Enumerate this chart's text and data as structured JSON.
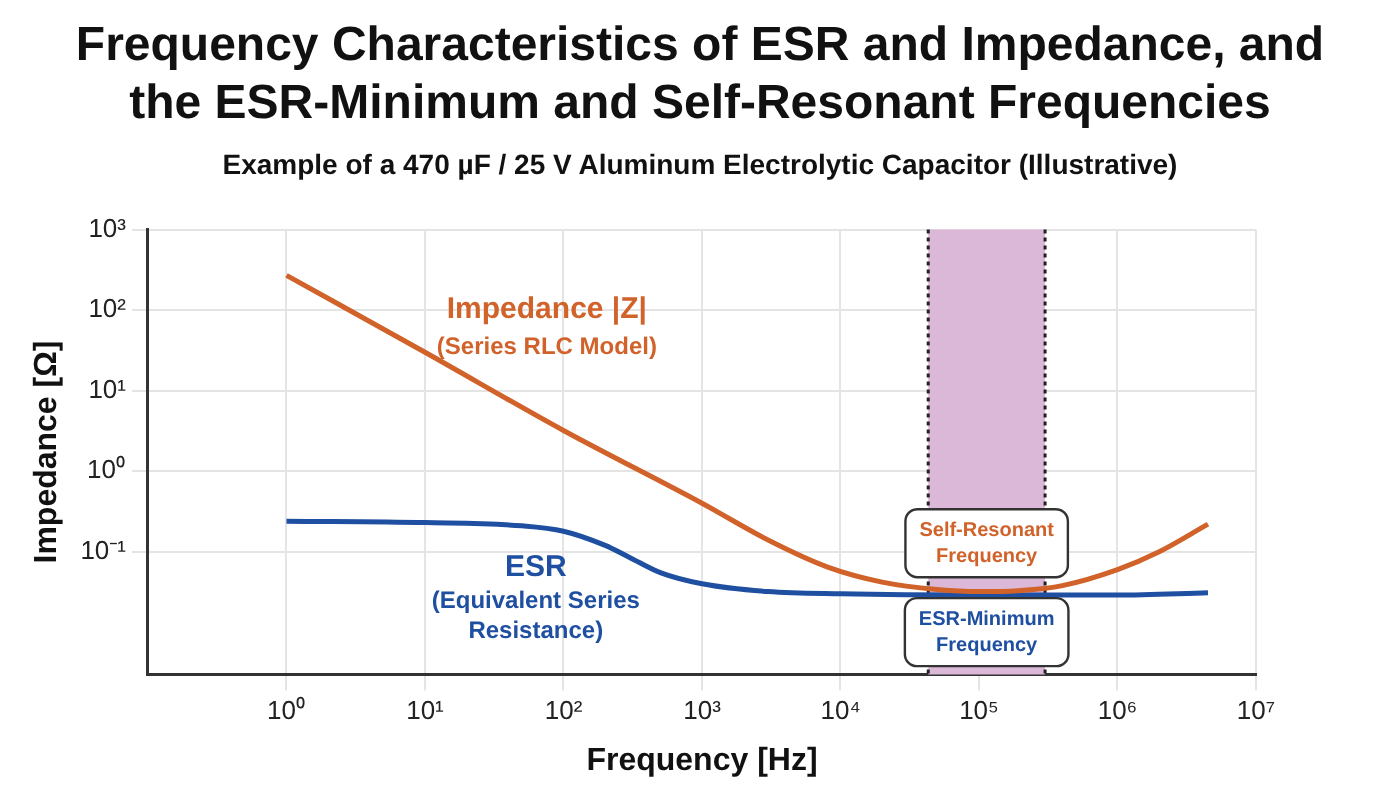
{
  "chart_data": {
    "type": "line",
    "title": "Frequency Characteristics of ESR and Impedance, and the ESR-Minimum and Self-Resonant Frequencies",
    "subtitle": "Example of a 470 µF / 25 V Aluminum Electrolytic Capacitor (Illustrative)",
    "xlabel": "Frequency [Hz]",
    "ylabel": "Impedance [Ω]",
    "log": "xy",
    "grid": true,
    "legend": false,
    "marker": "none",
    "line_style": "solid",
    "xlim": [
      0.1,
      10000000
    ],
    "xticks": [
      {
        "value": 1,
        "label": "10⁰"
      },
      {
        "value": 10,
        "label": "10¹"
      },
      {
        "value": 100,
        "label": "10²"
      },
      {
        "value": 1000,
        "label": "10³"
      },
      {
        "value": 10000,
        "label": "10⁴"
      },
      {
        "value": 100000,
        "label": "10⁵"
      },
      {
        "value": 1000000,
        "label": "10⁶"
      },
      {
        "value": 10000000,
        "label": "10⁷"
      }
    ],
    "ylim": [
      0.003,
      1000
    ],
    "yticks": [
      {
        "value": 0.1,
        "label": "10⁻¹"
      },
      {
        "value": 1,
        "label": "10⁰"
      },
      {
        "value": 10,
        "label": "10¹"
      },
      {
        "value": 100,
        "label": "10²"
      },
      {
        "value": 1000,
        "label": "10³"
      }
    ],
    "series": [
      {
        "name": "Impedance |Z|",
        "color": "#d0622a",
        "x": [
          1,
          10,
          100,
          1000,
          3000,
          8000,
          20000,
          50000,
          100000,
          200000,
          400000,
          1000000,
          2000000,
          4500000
        ],
        "values": [
          270,
          30,
          3.2,
          0.4,
          0.14,
          0.065,
          0.042,
          0.034,
          0.032,
          0.033,
          0.038,
          0.06,
          0.1,
          0.22
        ]
      },
      {
        "name": "ESR",
        "color": "#1f4fa0",
        "x": [
          1,
          10,
          50,
          100,
          200,
          300,
          500,
          1000,
          3000,
          10000,
          100000,
          1000000,
          4500000
        ],
        "values": [
          0.24,
          0.23,
          0.21,
          0.18,
          0.12,
          0.085,
          0.055,
          0.04,
          0.032,
          0.03,
          0.029,
          0.029,
          0.031
        ]
      }
    ],
    "bands": [
      {
        "axis": "x",
        "from": 43000,
        "to": 300000,
        "color": "#dcb8d8"
      }
    ],
    "ref_lines": [
      {
        "axis": "x",
        "value": 43000,
        "color": "#222222",
        "line_style": "dotted"
      },
      {
        "axis": "x",
        "value": 300000,
        "color": "#222222",
        "line_style": "dotted"
      }
    ],
    "annotations": [
      "(Series RLC Model)",
      "(Equivalent Series Resistance)",
      "Self-Resonant Frequency",
      "ESR-Minimum Frequency"
    ]
  }
}
